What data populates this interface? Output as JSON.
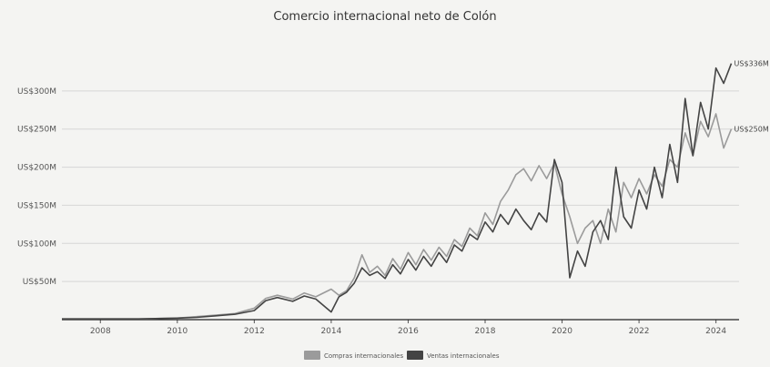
{
  "chart_data": {
    "type": "line",
    "title": "Comercio internacional neto de Colón",
    "xlabel": "",
    "ylabel": "",
    "xlim": [
      2007,
      2024.6
    ],
    "ylim": [
      0,
      350
    ],
    "x_ticks": [
      {
        "value": 2008,
        "label": "2008"
      },
      {
        "value": 2010,
        "label": "2010"
      },
      {
        "value": 2012,
        "label": "2012"
      },
      {
        "value": 2014,
        "label": "2014"
      },
      {
        "value": 2016,
        "label": "2016"
      },
      {
        "value": 2018,
        "label": "2018"
      },
      {
        "value": 2020,
        "label": "2020"
      },
      {
        "value": 2022,
        "label": "2022"
      },
      {
        "value": 2024,
        "label": "2024"
      }
    ],
    "y_ticks": [
      {
        "value": 50,
        "label": "US$50M"
      },
      {
        "value": 100,
        "label": "US$100M"
      },
      {
        "value": 150,
        "label": "US$150M"
      },
      {
        "value": 200,
        "label": "US$200M"
      },
      {
        "value": 250,
        "label": "US$250M"
      },
      {
        "value": 300,
        "label": "US$300M"
      }
    ],
    "grid": true,
    "legend_position": "bottom",
    "series": [
      {
        "name": "Compras internacionales",
        "color": "#9b9b9b",
        "end_label": "US$250M",
        "points": [
          [
            2007.0,
            1
          ],
          [
            2008.0,
            1
          ],
          [
            2009.0,
            1
          ],
          [
            2010.0,
            2
          ],
          [
            2010.5,
            4
          ],
          [
            2011.0,
            6
          ],
          [
            2011.5,
            8
          ],
          [
            2012.0,
            15
          ],
          [
            2012.3,
            28
          ],
          [
            2012.6,
            32
          ],
          [
            2013.0,
            27
          ],
          [
            2013.3,
            35
          ],
          [
            2013.6,
            30
          ],
          [
            2014.0,
            40
          ],
          [
            2014.2,
            32
          ],
          [
            2014.4,
            38
          ],
          [
            2014.6,
            55
          ],
          [
            2014.8,
            85
          ],
          [
            2015.0,
            62
          ],
          [
            2015.2,
            70
          ],
          [
            2015.4,
            58
          ],
          [
            2015.6,
            80
          ],
          [
            2015.8,
            66
          ],
          [
            2016.0,
            88
          ],
          [
            2016.2,
            72
          ],
          [
            2016.4,
            92
          ],
          [
            2016.6,
            78
          ],
          [
            2016.8,
            95
          ],
          [
            2017.0,
            83
          ],
          [
            2017.2,
            105
          ],
          [
            2017.4,
            96
          ],
          [
            2017.6,
            120
          ],
          [
            2017.8,
            110
          ],
          [
            2018.0,
            140
          ],
          [
            2018.2,
            125
          ],
          [
            2018.4,
            155
          ],
          [
            2018.6,
            170
          ],
          [
            2018.8,
            190
          ],
          [
            2019.0,
            198
          ],
          [
            2019.2,
            182
          ],
          [
            2019.4,
            202
          ],
          [
            2019.6,
            185
          ],
          [
            2019.8,
            205
          ],
          [
            2020.0,
            165
          ],
          [
            2020.2,
            135
          ],
          [
            2020.4,
            100
          ],
          [
            2020.6,
            120
          ],
          [
            2020.8,
            130
          ],
          [
            2021.0,
            100
          ],
          [
            2021.2,
            145
          ],
          [
            2021.4,
            115
          ],
          [
            2021.6,
            180
          ],
          [
            2021.8,
            160
          ],
          [
            2022.0,
            185
          ],
          [
            2022.2,
            165
          ],
          [
            2022.4,
            190
          ],
          [
            2022.6,
            175
          ],
          [
            2022.8,
            210
          ],
          [
            2023.0,
            200
          ],
          [
            2023.2,
            245
          ],
          [
            2023.4,
            215
          ],
          [
            2023.6,
            260
          ],
          [
            2023.8,
            240
          ],
          [
            2024.0,
            270
          ],
          [
            2024.2,
            225
          ],
          [
            2024.4,
            250
          ]
        ]
      },
      {
        "name": "Ventas internacionales",
        "color": "#444444",
        "end_label": "US$336M",
        "points": [
          [
            2007.0,
            1
          ],
          [
            2008.0,
            1
          ],
          [
            2009.0,
            1
          ],
          [
            2010.0,
            2
          ],
          [
            2010.5,
            3
          ],
          [
            2011.0,
            5
          ],
          [
            2011.5,
            7
          ],
          [
            2012.0,
            12
          ],
          [
            2012.3,
            25
          ],
          [
            2012.6,
            29
          ],
          [
            2013.0,
            24
          ],
          [
            2013.3,
            31
          ],
          [
            2013.6,
            27
          ],
          [
            2014.0,
            10
          ],
          [
            2014.2,
            30
          ],
          [
            2014.4,
            36
          ],
          [
            2014.6,
            48
          ],
          [
            2014.8,
            68
          ],
          [
            2015.0,
            58
          ],
          [
            2015.2,
            63
          ],
          [
            2015.4,
            54
          ],
          [
            2015.6,
            72
          ],
          [
            2015.8,
            60
          ],
          [
            2016.0,
            79
          ],
          [
            2016.2,
            65
          ],
          [
            2016.4,
            83
          ],
          [
            2016.6,
            70
          ],
          [
            2016.8,
            88
          ],
          [
            2017.0,
            75
          ],
          [
            2017.2,
            98
          ],
          [
            2017.4,
            90
          ],
          [
            2017.6,
            112
          ],
          [
            2017.8,
            105
          ],
          [
            2018.0,
            128
          ],
          [
            2018.2,
            115
          ],
          [
            2018.4,
            138
          ],
          [
            2018.6,
            125
          ],
          [
            2018.8,
            145
          ],
          [
            2019.0,
            130
          ],
          [
            2019.2,
            118
          ],
          [
            2019.4,
            140
          ],
          [
            2019.6,
            128
          ],
          [
            2019.8,
            210
          ],
          [
            2020.0,
            180
          ],
          [
            2020.2,
            55
          ],
          [
            2020.4,
            90
          ],
          [
            2020.6,
            70
          ],
          [
            2020.8,
            115
          ],
          [
            2021.0,
            130
          ],
          [
            2021.2,
            105
          ],
          [
            2021.4,
            200
          ],
          [
            2021.6,
            135
          ],
          [
            2021.8,
            120
          ],
          [
            2022.0,
            170
          ],
          [
            2022.2,
            145
          ],
          [
            2022.4,
            200
          ],
          [
            2022.6,
            160
          ],
          [
            2022.8,
            230
          ],
          [
            2023.0,
            180
          ],
          [
            2023.2,
            290
          ],
          [
            2023.4,
            215
          ],
          [
            2023.6,
            285
          ],
          [
            2023.8,
            250
          ],
          [
            2024.0,
            330
          ],
          [
            2024.2,
            310
          ],
          [
            2024.4,
            336
          ]
        ]
      }
    ]
  }
}
